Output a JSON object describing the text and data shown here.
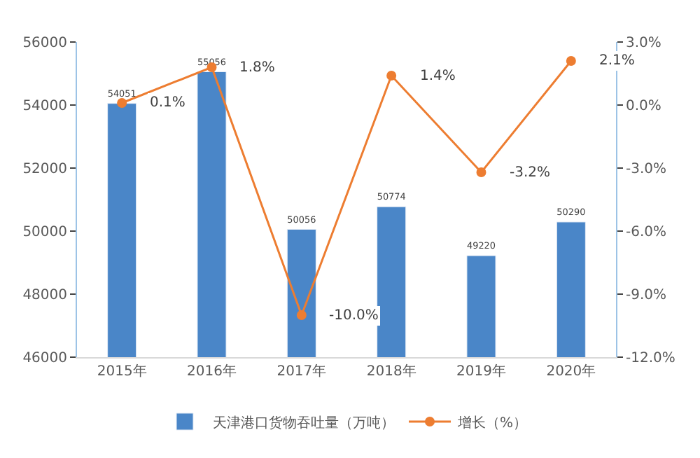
{
  "chart_data": {
    "type": "bar",
    "categories": [
      "2015年",
      "2016年",
      "2017年",
      "2018年",
      "2019年",
      "2020年"
    ],
    "series": [
      {
        "name": "天津港口货物吞吐量（万吨）",
        "color": "#4a86c8",
        "values": [
          54051,
          55056,
          50056,
          50774,
          49220,
          50290
        ],
        "value_labels": [
          "54051",
          "55056",
          "50056",
          "50774",
          "49220",
          "50290"
        ]
      },
      {
        "name": "增长（%）",
        "color": "#ed7d31",
        "type": "line",
        "axis": "y2",
        "marker": "circle",
        "values": [
          0.1,
          1.8,
          -10.0,
          1.4,
          -3.2,
          2.1
        ],
        "value_labels": [
          "0.1%",
          "1.8%",
          "-10.0%",
          "1.4%",
          "-3.2%",
          "2.1%"
        ]
      }
    ],
    "ylim": [
      46000,
      56000
    ],
    "yticks": [
      46000,
      48000,
      50000,
      52000,
      54000,
      56000
    ],
    "y2lim": [
      -12,
      3
    ],
    "y2ticks": [
      {
        "value": -12,
        "label": "-12.0%"
      },
      {
        "value": -9,
        "label": "-9.0%"
      },
      {
        "value": -6,
        "label": "-6.0%"
      },
      {
        "value": -3,
        "label": "-3.0%"
      },
      {
        "value": 0,
        "label": "0.0%"
      },
      {
        "value": 3,
        "label": "3.0%"
      }
    ],
    "legend": "bottom"
  }
}
